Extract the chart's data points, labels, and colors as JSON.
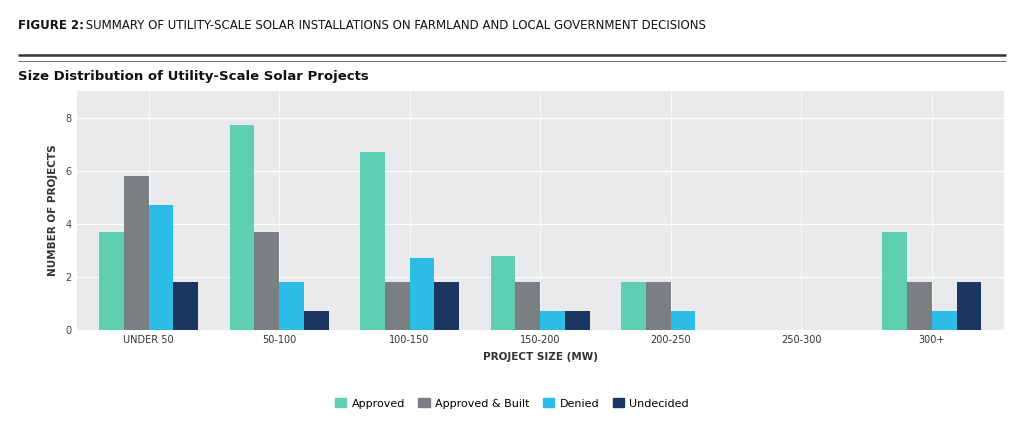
{
  "title_bold": "FIGURE 2:",
  "title_rest": " SUMMARY OF UTILITY-SCALE SOLAR INSTALLATIONS ON FARMLAND AND LOCAL GOVERNMENT DECISIONS",
  "subtitle": "Size Distribution of Utility-Scale Solar Projects",
  "categories": [
    "UNDER 50",
    "50-100",
    "100-150",
    "150-200",
    "200-250",
    "250-300",
    "300+"
  ],
  "series": {
    "Approved": [
      3.7,
      7.7,
      6.7,
      2.8,
      1.8,
      0,
      3.7
    ],
    "Approved & Built": [
      5.8,
      3.7,
      1.8,
      1.8,
      1.8,
      0,
      1.8
    ],
    "Denied": [
      4.7,
      1.8,
      2.7,
      0.7,
      0.7,
      0,
      0.7
    ],
    "Undecided": [
      1.8,
      0.7,
      1.8,
      0.7,
      0,
      0,
      1.8
    ]
  },
  "colors": {
    "Approved": "#5ecfb1",
    "Approved & Built": "#7a8082",
    "Denied": "#2bbde8",
    "Undecided": "#1b3660"
  },
  "ylabel": "NUMBER OF PROJECTS",
  "xlabel": "PROJECT SIZE (MW)",
  "ylim": [
    0,
    9
  ],
  "yticks": [
    0,
    2,
    4,
    6,
    8
  ],
  "background_color": "#ffffff",
  "plot_bg_color": "#e8eaec",
  "title_fontsize": 8.5,
  "subtitle_fontsize": 9.5,
  "axis_label_fontsize": 7.5,
  "tick_fontsize": 7,
  "legend_fontsize": 8,
  "bar_width": 0.19
}
